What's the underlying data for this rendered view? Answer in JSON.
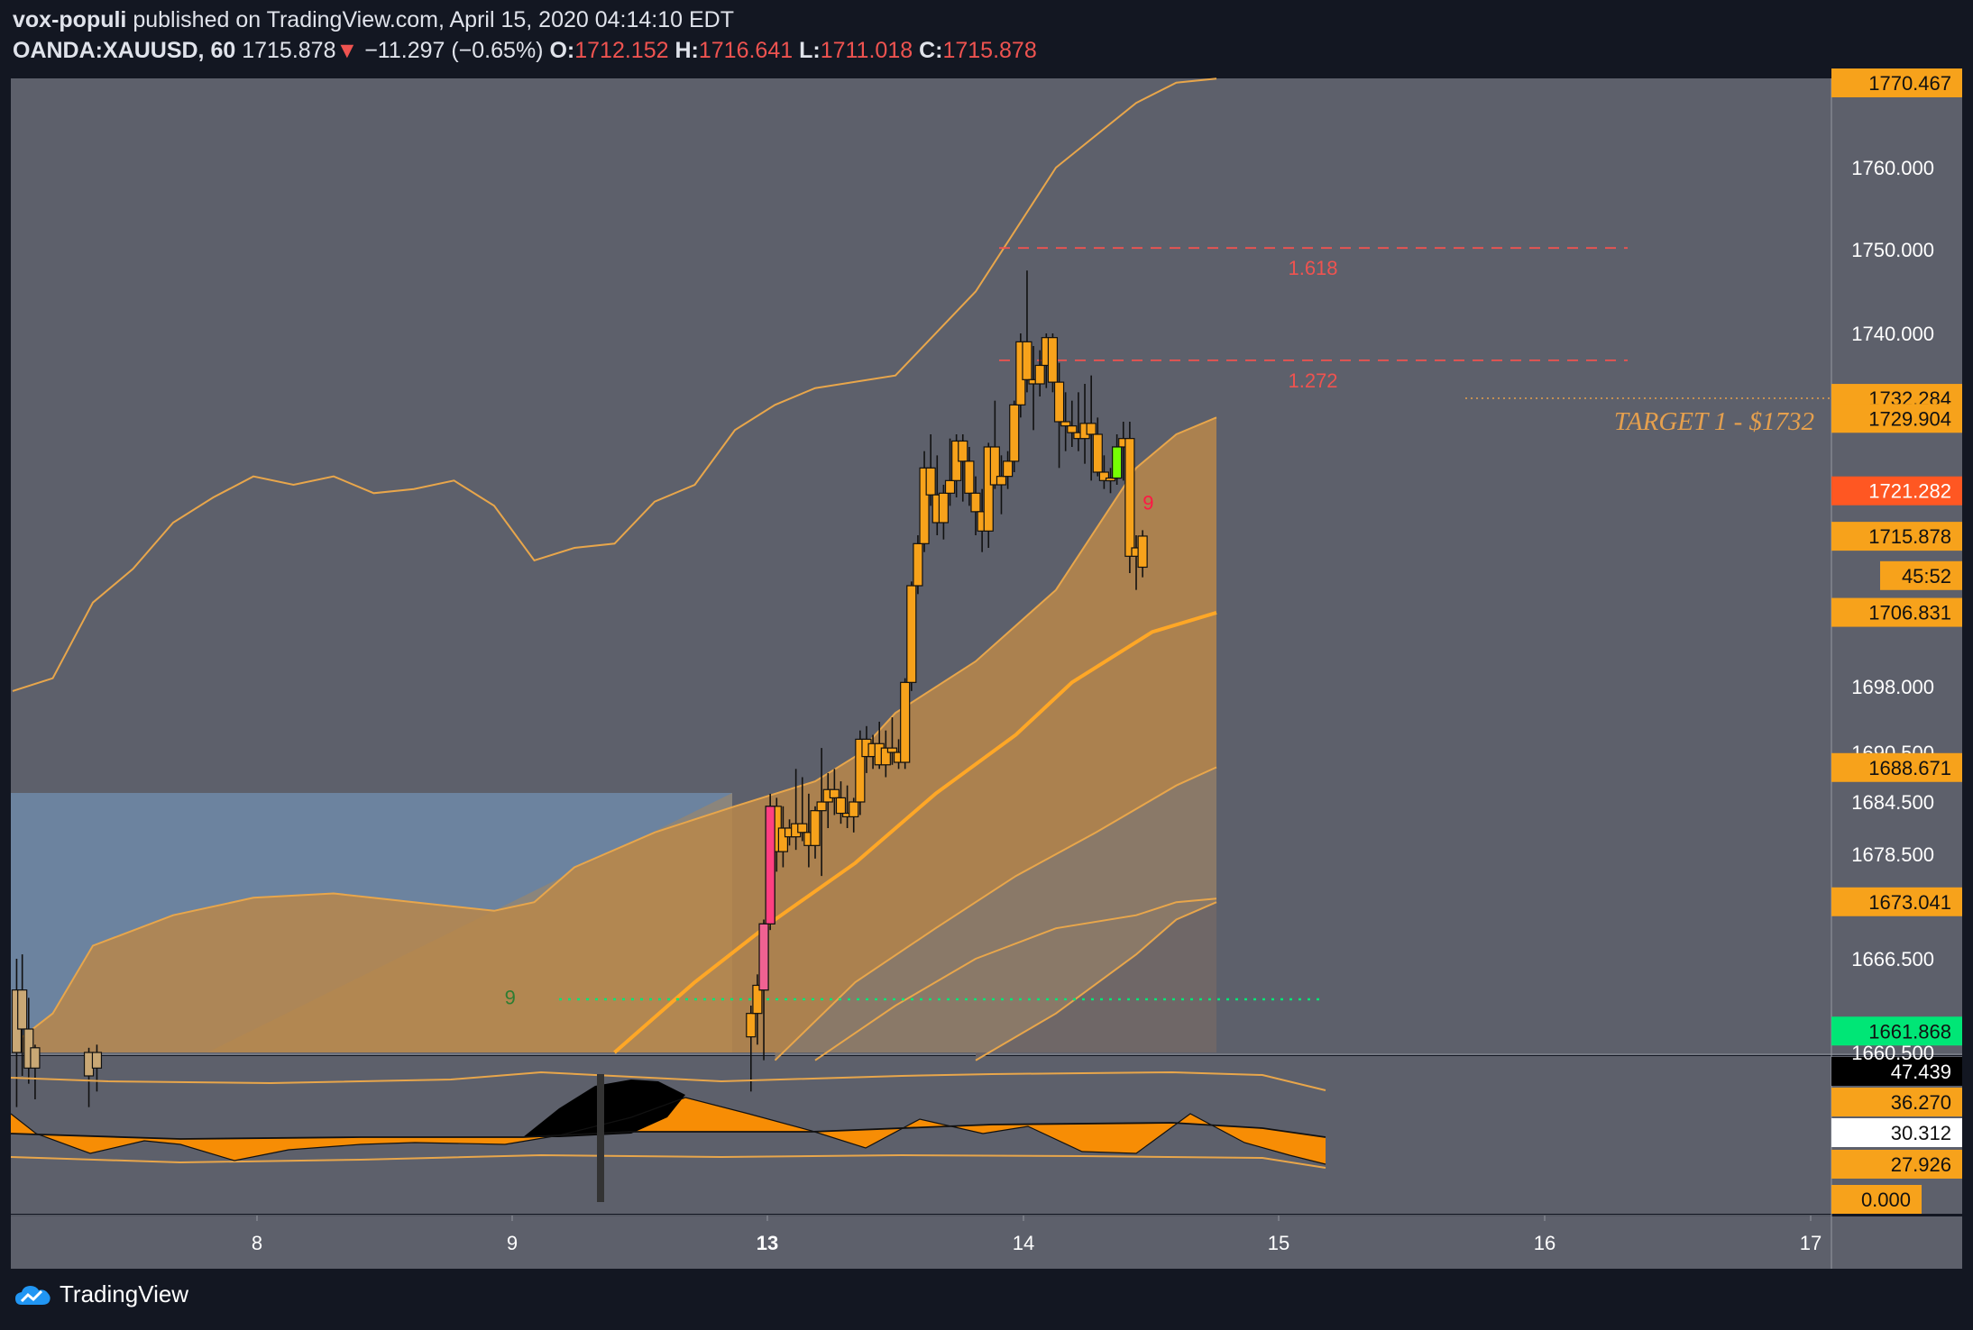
{
  "header": {
    "author": "vox-populi",
    "published_text": "published on TradingView.com, April 15, 2020 04:14:10 EDT",
    "symbol": "OANDA:XAUUSD, 60",
    "last": "1715.878",
    "change": "−11.297 (−0.65%)",
    "o_label": "O:",
    "o": "1712.152",
    "h_label": "H:",
    "h": "1716.641",
    "l_label": "L:",
    "l": "1711.018",
    "c_label": "C:",
    "c": "1715.878"
  },
  "brand": "TradingView",
  "colors": {
    "pane": "#5d606b",
    "candle": "#f7a21b",
    "band": "#f7931a",
    "upper": "#e8a64b",
    "fib": "#ef5350",
    "green": "#00c853",
    "red_badge": "#ff5722"
  },
  "chart_data": {
    "type": "candlestick",
    "y_ticks": [
      "1760.000",
      "1750.000",
      "1740.000",
      "1698.000",
      "1690.500",
      "1684.500",
      "1678.500",
      "1666.500",
      "1660.500"
    ],
    "x_ticks": [
      "8",
      "9",
      "13",
      "14",
      "15",
      "16",
      "17"
    ],
    "price_badges": [
      {
        "label": "1770.467",
        "kind": "orange",
        "y": 1770.47
      },
      {
        "label": "1732.284",
        "kind": "orange",
        "y": 1732.28
      },
      {
        "label": "1729.904",
        "kind": "orange",
        "y": 1729.9
      },
      {
        "label": "1721.282",
        "kind": "red",
        "y": 1721.28
      },
      {
        "label": "1715.878",
        "kind": "orange",
        "y": 1715.88
      },
      {
        "label": "45:52",
        "kind": "orange",
        "y": 1711.2
      },
      {
        "label": "1706.831",
        "kind": "orange",
        "y": 1706.83
      },
      {
        "label": "1688.671",
        "kind": "orange",
        "y": 1688.67
      },
      {
        "label": "1673.041",
        "kind": "orange",
        "y": 1673.04
      },
      {
        "label": "1661.868",
        "kind": "green",
        "y": 1661.87
      }
    ],
    "fib_levels": [
      {
        "label": "1.618",
        "y": 1750.2
      },
      {
        "label": "1.272",
        "y": 1736.8
      }
    ],
    "target_label": "TARGET 1 - $1732",
    "target_price": 1732.28,
    "markers": [
      {
        "label": "9",
        "color": "#2e7d32",
        "x": 6.2,
        "y": 1663
      },
      {
        "label": "9",
        "color": "#ff1744",
        "x": 14.15,
        "y": 1718
      }
    ],
    "candles": [
      [
        9.2,
        1661.5,
        1663.5,
        1658.0,
        1663.0
      ],
      [
        9.28,
        1663.0,
        1665.5,
        1661.0,
        1664.8
      ],
      [
        9.36,
        1664.5,
        1671.0,
        1660.0,
        1670.5
      ],
      [
        9.44,
        1670.5,
        1685.5,
        1669.8,
        1684.0
      ],
      [
        9.52,
        1684.0,
        1685.0,
        1676.5,
        1678.8
      ],
      [
        9.6,
        1678.8,
        1684.0,
        1677.0,
        1681.5
      ],
      [
        9.68,
        1681.5,
        1682.5,
        1679.5,
        1680.5
      ],
      [
        9.76,
        1680.5,
        1688.5,
        1679.0,
        1682.0
      ],
      [
        9.84,
        1682.0,
        1687.5,
        1680.0,
        1681.0
      ],
      [
        9.92,
        1681.0,
        1685.5,
        1677.0,
        1679.5
      ],
      [
        10.0,
        1679.5,
        1684.0,
        1678.0,
        1683.5
      ],
      [
        10.08,
        1683.5,
        1691.0,
        1676.0,
        1684.5
      ],
      [
        10.16,
        1684.5,
        1688.0,
        1681.5,
        1686.0
      ],
      [
        10.24,
        1686.0,
        1688.5,
        1683.0,
        1685.0
      ],
      [
        10.32,
        1685.0,
        1687.0,
        1682.0,
        1683.2
      ],
      [
        10.4,
        1683.2,
        1686.5,
        1681.5,
        1682.8
      ],
      [
        10.48,
        1682.8,
        1685.0,
        1681.0,
        1684.5
      ],
      [
        10.56,
        1684.5,
        1693.0,
        1683.0,
        1692.0
      ],
      [
        10.64,
        1692.0,
        1693.5,
        1688.0,
        1690.0
      ],
      [
        10.72,
        1690.0,
        1692.5,
        1688.5,
        1691.5
      ],
      [
        10.8,
        1691.5,
        1694.0,
        1688.5,
        1689.0
      ],
      [
        10.88,
        1689.0,
        1693.0,
        1687.5,
        1691.0
      ],
      [
        10.96,
        1691.0,
        1694.5,
        1689.0,
        1690.5
      ],
      [
        11.04,
        1690.5,
        1692.0,
        1688.5,
        1689.3
      ],
      [
        11.12,
        1689.3,
        1699.0,
        1688.5,
        1698.5
      ],
      [
        11.2,
        1698.5,
        1710.5,
        1697.5,
        1710.0
      ],
      [
        11.28,
        1710.0,
        1716.0,
        1709.0,
        1715.0
      ],
      [
        11.36,
        1715.0,
        1726.0,
        1714.0,
        1724.0
      ],
      [
        11.44,
        1724.0,
        1728.0,
        1719.5,
        1720.8
      ],
      [
        11.52,
        1720.8,
        1725.5,
        1716.0,
        1717.5
      ],
      [
        11.6,
        1717.5,
        1722.0,
        1715.5,
        1721.0
      ],
      [
        11.68,
        1721.0,
        1727.5,
        1719.5,
        1722.5
      ],
      [
        11.76,
        1722.5,
        1728.0,
        1720.5,
        1727.2
      ],
      [
        11.84,
        1727.2,
        1728.0,
        1720.0,
        1724.8
      ],
      [
        11.92,
        1724.8,
        1726.5,
        1719.5,
        1721.0
      ],
      [
        12.0,
        1721.0,
        1723.0,
        1716.0,
        1718.8
      ],
      [
        12.08,
        1718.8,
        1721.5,
        1714.0,
        1716.5
      ],
      [
        12.16,
        1716.5,
        1727.0,
        1714.5,
        1726.5
      ],
      [
        12.24,
        1726.5,
        1732.0,
        1721.5,
        1722.0
      ],
      [
        12.32,
        1722.0,
        1725.5,
        1718.5,
        1723.0
      ],
      [
        12.4,
        1723.0,
        1726.0,
        1721.5,
        1724.8
      ],
      [
        12.48,
        1724.8,
        1732.0,
        1723.5,
        1731.5
      ],
      [
        12.56,
        1731.5,
        1740.0,
        1730.0,
        1739.0
      ],
      [
        12.64,
        1739.0,
        1747.5,
        1733.0,
        1734.5
      ],
      [
        12.72,
        1734.5,
        1738.5,
        1728.5,
        1734.0
      ],
      [
        12.8,
        1734.0,
        1738.0,
        1732.5,
        1736.2
      ],
      [
        12.88,
        1736.2,
        1740.0,
        1733.5,
        1739.5
      ],
      [
        12.96,
        1739.5,
        1740.0,
        1733.0,
        1734.2
      ],
      [
        13.04,
        1734.2,
        1736.5,
        1724.0,
        1729.5
      ],
      [
        13.12,
        1729.5,
        1733.0,
        1726.0,
        1729.0
      ],
      [
        13.2,
        1729.0,
        1732.0,
        1726.5,
        1728.2
      ],
      [
        13.28,
        1728.2,
        1733.0,
        1726.0,
        1727.5
      ],
      [
        13.36,
        1727.5,
        1734.0,
        1724.5,
        1729.3
      ],
      [
        13.44,
        1729.3,
        1735.0,
        1722.5,
        1728.0
      ],
      [
        13.52,
        1728.0,
        1730.0,
        1723.0,
        1723.5
      ],
      [
        13.6,
        1723.5,
        1725.5,
        1721.5,
        1722.5
      ],
      [
        13.68,
        1722.5,
        1724.0,
        1721.0,
        1722.8
      ],
      [
        13.76,
        1722.8,
        1728.0,
        1722.0,
        1726.5
      ],
      [
        13.84,
        1726.5,
        1729.5,
        1722.5,
        1727.5
      ],
      [
        13.92,
        1727.5,
        1729.5,
        1711.5,
        1713.5
      ],
      [
        14.0,
        1713.5,
        1716.0,
        1709.5,
        1714.5
      ],
      [
        14.08,
        1712.2,
        1716.6,
        1711.0,
        1715.9
      ]
    ],
    "early_candles": [
      [
        0.05,
        1660.5,
        1666.5,
        1657.0,
        1664.5
      ],
      [
        0.12,
        1664.5,
        1667.0,
        1659.0,
        1662.0
      ],
      [
        0.2,
        1662.0,
        1664.0,
        1658.5,
        1659.5
      ],
      [
        0.28,
        1659.5,
        1661.0,
        1657.5,
        1660.8
      ],
      [
        0.95,
        1659.0,
        1660.8,
        1657.0,
        1660.5
      ],
      [
        1.05,
        1660.5,
        1661.0,
        1658.0,
        1659.5
      ]
    ],
    "indicator": {
      "labels": [
        "47.439",
        "36.270",
        "30.312",
        "27.926",
        "0.000"
      ]
    }
  }
}
